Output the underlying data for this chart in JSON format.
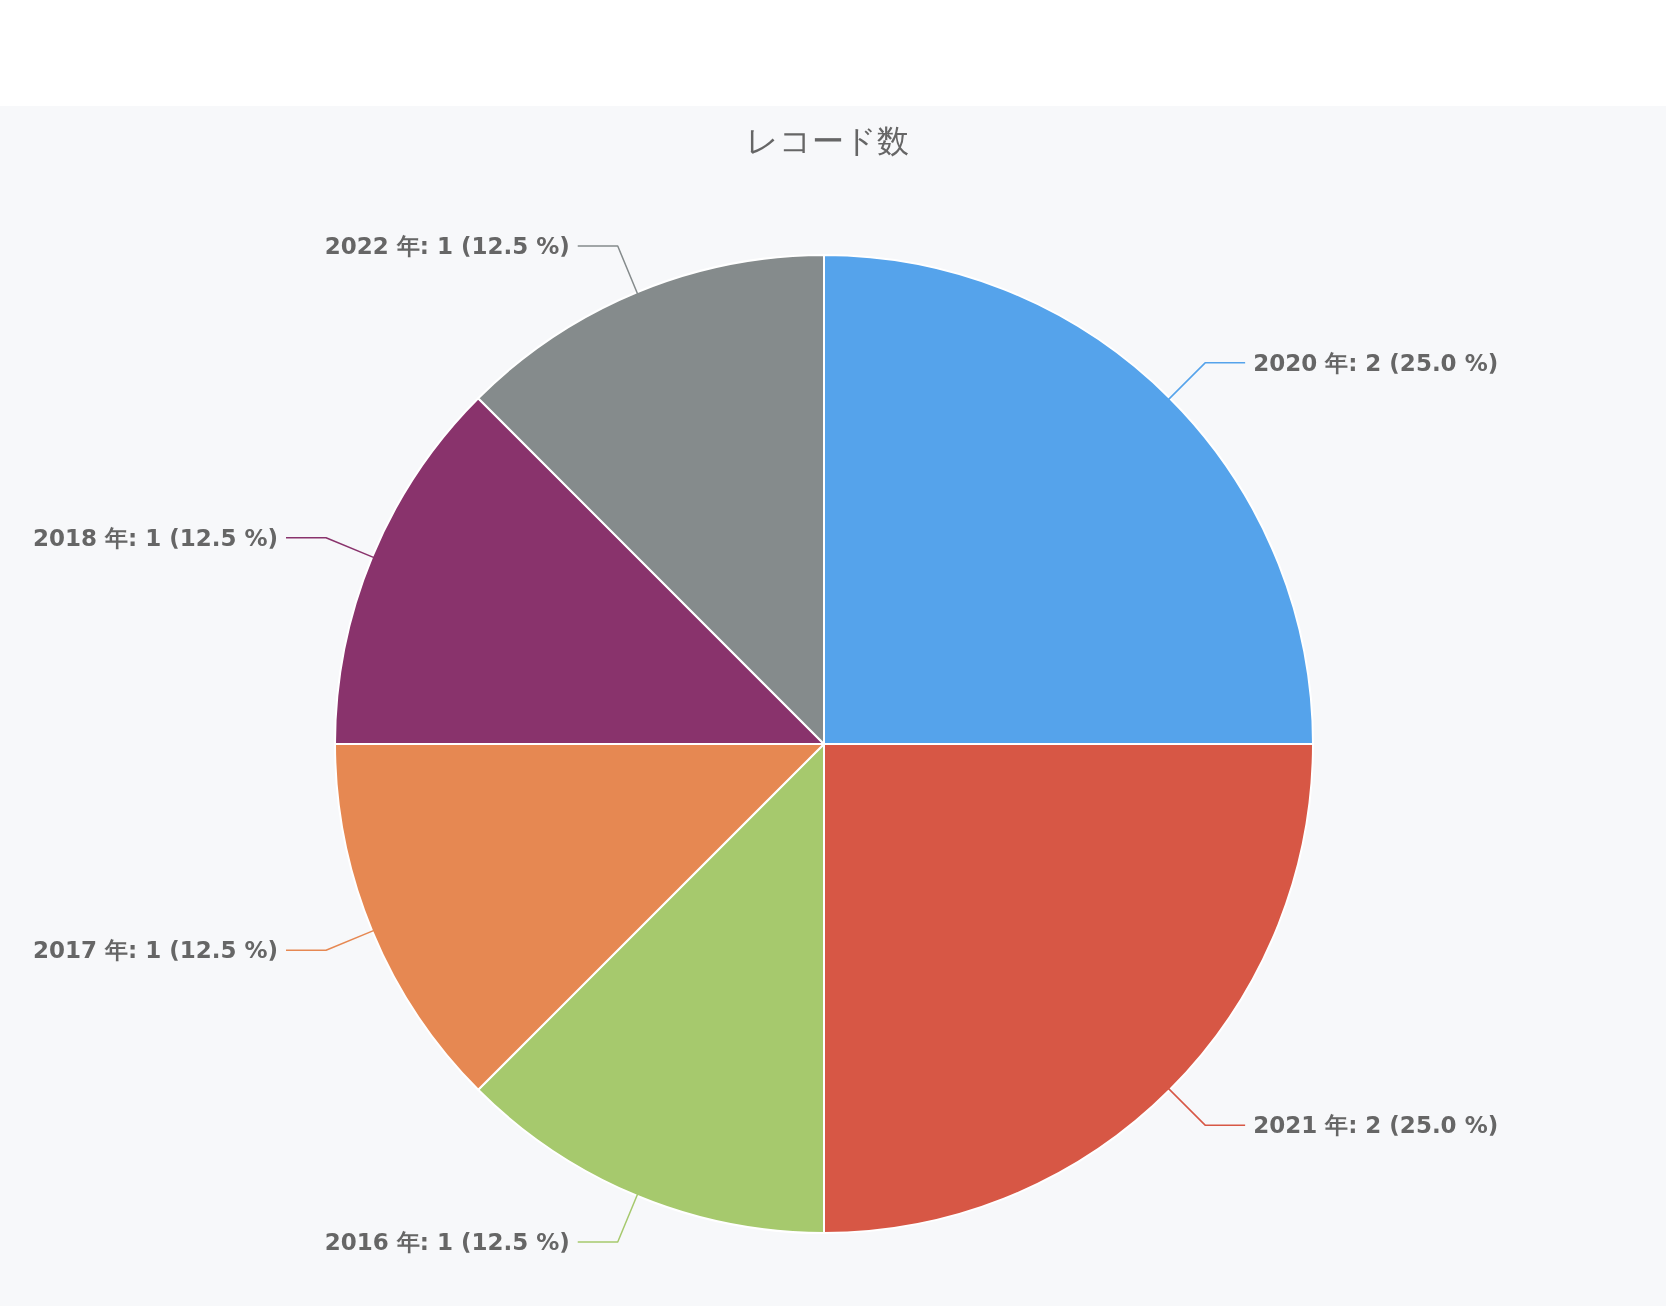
{
  "chart_data": {
    "type": "pie",
    "title": "レコード数",
    "categories": [
      "2020 年",
      "2021 年",
      "2016 年",
      "2017 年",
      "2018 年",
      "2022 年"
    ],
    "values": [
      2,
      2,
      1,
      1,
      1,
      1
    ],
    "value_labels": [
      "2 (25.0 %)",
      "2 (25.0 %)",
      "1 (12.5 %)",
      "1 (12.5 %)",
      "1 (12.5 %)",
      "1 (12.5 %)"
    ],
    "colors": [
      "#55a3eb",
      "#d75745",
      "#a6c96d",
      "#e68852",
      "#89336c",
      "#858b8c"
    ]
  }
}
